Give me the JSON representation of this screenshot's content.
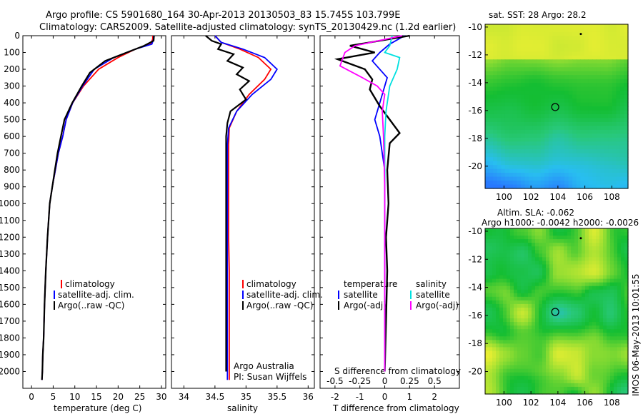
{
  "header": {
    "line1": "Argo profile: CS 5901680_164 30-Apr-2013 20130503_83 15.745S 103.799E",
    "line2": "Climatology: CARS2009. Satellite-adjusted climatology: synTS_20130429.nc (1.2d earlier)"
  },
  "stamp": "IMOS 06-May-2013 10:01:55",
  "colors": {
    "climatology": "#ff0000",
    "satellite": "#0000ff",
    "argo": "#000000",
    "sal_satellite": "#00e0e0",
    "sal_argo": "#ff00ff"
  },
  "chart_data": [
    {
      "type": "line",
      "xlabel": "temperature (deg C)",
      "ylabel": "",
      "xlim": [
        -2,
        31
      ],
      "ylim": [
        2100,
        0
      ],
      "xticks": [
        "0",
        "5",
        "10",
        "15",
        "20",
        "25",
        "30"
      ],
      "yticks": [
        "0",
        "100",
        "200",
        "300",
        "400",
        "500",
        "600",
        "700",
        "800",
        "900",
        "1000",
        "1100",
        "1200",
        "1300",
        "1400",
        "1500",
        "1600",
        "1700",
        "1800",
        "1900",
        "2000"
      ],
      "legend": [
        "climatology",
        "satellite-adj. clim.",
        "Argo(..raw -QC)"
      ],
      "legend_position": "bottom-center",
      "series": [
        {
          "name": "climatology",
          "x": [
            28,
            28,
            27.5,
            24,
            20,
            15.5,
            12,
            9.5,
            8,
            7.2,
            6.2,
            5.5,
            4.8,
            4.2,
            3.7,
            3.3,
            3.0,
            2.8,
            2.6,
            2.5,
            2.4
          ],
          "y": [
            0,
            20,
            50,
            80,
            130,
            200,
            300,
            400,
            500,
            600,
            700,
            800,
            900,
            1000,
            1200,
            1400,
            1600,
            1800,
            1900,
            2000,
            2050
          ]
        },
        {
          "name": "satellite-adj. clim.",
          "x": [
            28.2,
            28.2,
            27.8,
            24,
            19,
            14.5,
            11.8,
            9.5,
            8,
            7.2,
            6.2,
            5.5,
            4.8,
            4.2,
            3.7,
            3.3,
            3.0,
            2.8,
            2.6,
            2.5,
            2.4
          ],
          "y": [
            0,
            20,
            50,
            80,
            130,
            200,
            300,
            400,
            500,
            600,
            700,
            800,
            900,
            1000,
            1200,
            1400,
            1600,
            1800,
            1900,
            2000,
            2050
          ]
        },
        {
          "name": "Argo(..raw -QC)",
          "x": [
            28.3,
            28.2,
            26,
            22,
            17,
            13.5,
            11.6,
            9.4,
            7.6,
            6.8,
            6.0,
            5.4,
            4.8,
            4.2,
            3.7,
            3.3,
            3.0,
            2.8,
            2.6,
            2.5,
            2.4
          ],
          "y": [
            0,
            30,
            60,
            100,
            150,
            220,
            300,
            400,
            500,
            600,
            700,
            800,
            900,
            1000,
            1200,
            1400,
            1600,
            1800,
            1900,
            2000,
            2050
          ]
        }
      ]
    },
    {
      "type": "line",
      "xlabel": "salinity",
      "xlim": [
        33.8,
        36.1
      ],
      "ylim": [
        2100,
        0
      ],
      "xticks": [
        "34",
        "34.5",
        "35",
        "35.5",
        "36"
      ],
      "legend": [
        "climatology",
        "satellite-adj. clim.",
        "Argo(..raw -QC)"
      ],
      "legend_position": "bottom-center",
      "annotations": [
        "Argo Australia",
        "PI: Susan Wijffels"
      ],
      "series": [
        {
          "name": "climatology",
          "x": [
            34.5,
            34.6,
            34.9,
            35.2,
            35.4,
            35.3,
            35.05,
            34.85,
            34.73,
            34.72,
            34.72,
            34.72,
            34.72,
            34.73,
            34.73,
            34.73,
            34.73,
            34.73,
            34.73
          ],
          "y": [
            0,
            40,
            80,
            130,
            200,
            260,
            350,
            450,
            550,
            650,
            800,
            1000,
            1200,
            1400,
            1600,
            1800,
            1900,
            2000,
            2050
          ]
        },
        {
          "name": "satellite-adj. clim.",
          "x": [
            34.5,
            34.6,
            34.95,
            35.3,
            35.5,
            35.4,
            35.1,
            34.85,
            34.72,
            34.7,
            34.7,
            34.7,
            34.7,
            34.7,
            34.7,
            34.7,
            34.7,
            34.7,
            34.7
          ],
          "y": [
            0,
            40,
            80,
            130,
            200,
            260,
            350,
            450,
            550,
            650,
            800,
            1000,
            1200,
            1400,
            1600,
            1800,
            1900,
            2000,
            2050
          ]
        },
        {
          "name": "Argo(..raw -QC)",
          "x": [
            34.35,
            34.45,
            34.6,
            34.55,
            34.8,
            34.7,
            34.95,
            34.85,
            35.05,
            34.9,
            35.0,
            34.75,
            34.7,
            34.68,
            34.68,
            34.68,
            34.68,
            34.68,
            34.68,
            34.68,
            34.68
          ],
          "y": [
            0,
            30,
            50,
            80,
            110,
            150,
            190,
            230,
            270,
            320,
            380,
            450,
            520,
            600,
            800,
            1000,
            1200,
            1400,
            1600,
            1800,
            2000
          ]
        }
      ]
    },
    {
      "type": "line",
      "xlabel": "T difference from climatology",
      "xlabel_top": "S difference from climatology",
      "xlim": [
        -2.6,
        3
      ],
      "ylim": [
        2100,
        0
      ],
      "xticks": [
        "-2",
        "-1",
        "0",
        "1",
        "2"
      ],
      "xticks_top": [
        "-0.5",
        "-0.25",
        "0",
        "0.25",
        "0.5"
      ],
      "legend": [
        "temperature",
        "satellite",
        "Argo(-adj)",
        "salinity",
        "satellite",
        "Argo(-adj)"
      ],
      "legend_position": "bottom-center",
      "series": [
        {
          "name": "satellite",
          "x": [
            0.8,
            0.2,
            -0.2,
            -0.5,
            0.1,
            -0.2,
            -0.4,
            -0.2,
            0,
            0,
            0,
            0,
            0,
            0,
            0
          ],
          "y": [
            0,
            50,
            100,
            150,
            250,
            400,
            500,
            600,
            800,
            1000,
            1200,
            1400,
            1600,
            1800,
            2000
          ]
        },
        {
          "name": "Argo(-adj)",
          "x": [
            1.0,
            -1.4,
            -0.4,
            -1.9,
            -0.8,
            -0.5,
            -0.6,
            -0.2,
            0.6,
            0.2,
            0.1,
            0.15,
            0.05,
            0.1,
            0.05,
            0
          ],
          "y": [
            0,
            60,
            100,
            140,
            200,
            260,
            320,
            420,
            580,
            640,
            800,
            1000,
            1200,
            1400,
            1700,
            2000
          ]
        },
        {
          "name": "salinity satellite",
          "x": [
            0.3,
            0.2,
            0.0,
            0.6,
            0.5,
            0.2,
            0.05,
            0,
            0,
            0,
            0,
            0
          ],
          "y": [
            0,
            60,
            100,
            130,
            200,
            300,
            450,
            600,
            800,
            1200,
            1600,
            2000
          ]
        },
        {
          "name": "salinity Argo(-adj)",
          "x": [
            0.7,
            -1.2,
            -1.6,
            -1.8,
            -0.9,
            -0.3,
            0.0,
            -0.1,
            -0.05,
            0,
            0,
            0
          ],
          "y": [
            0,
            60,
            100,
            180,
            250,
            300,
            350,
            450,
            600,
            900,
            1400,
            2000
          ]
        }
      ]
    },
    {
      "type": "heatmap",
      "title": "sat. SST: 28  Argo: 28.2",
      "xlim": [
        98.6,
        109.2
      ],
      "ylim": [
        -21.6,
        -9.8
      ],
      "xticks": [
        "100",
        "102",
        "104",
        "106",
        "108"
      ],
      "yticks": [
        "-10",
        "-12",
        "-14",
        "-16",
        "-18",
        "-20"
      ],
      "marker": {
        "x": 103.8,
        "y": -15.75
      }
    },
    {
      "type": "heatmap",
      "title": "Altim. SLA: -0.062",
      "subtitle": "Argo h1000: -0.0042 h2000: -0.0026",
      "xlim": [
        98.6,
        109.2
      ],
      "ylim": [
        -21.6,
        -9.8
      ],
      "xticks": [
        "100",
        "102",
        "104",
        "106",
        "108"
      ],
      "yticks": [
        "-10",
        "-12",
        "-14",
        "-16",
        "-18",
        "-20"
      ],
      "marker": {
        "x": 103.8,
        "y": -15.75
      }
    }
  ]
}
